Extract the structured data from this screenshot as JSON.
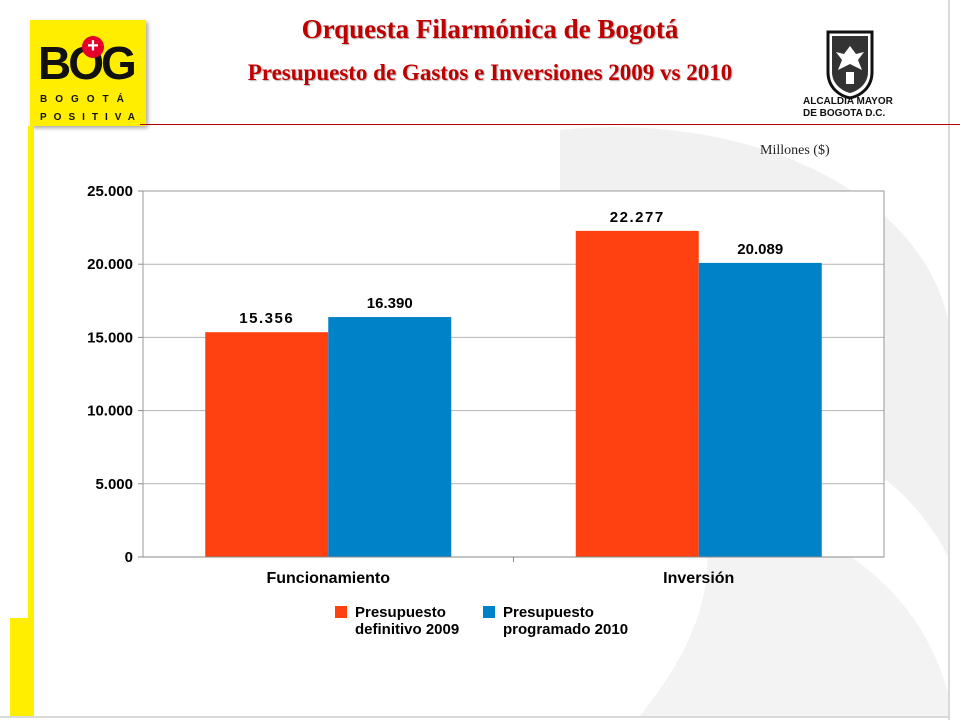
{
  "header": {
    "title": "Orquesta Filarmónica de Bogotá",
    "subtitle": "Presupuesto de Gastos e Inversiones 2009 vs 2010"
  },
  "logos": {
    "bog": {
      "word": "BOG",
      "plus": "+",
      "line1": "BOGOTÁ",
      "line2": "POSITIVA"
    },
    "alcaldia": {
      "line1": "ALCALDIA MAYOR",
      "line2": "DE BOGOTA D.C."
    }
  },
  "units_label": "Millones ($)",
  "colors": {
    "series_2009": "#ff4112",
    "series_2010": "#0082c8",
    "title": "#c00000",
    "accent": "#ffee00"
  },
  "chart_data": {
    "type": "bar",
    "categories": [
      "Funcionamiento",
      "Inversión"
    ],
    "series": [
      {
        "name": "Presupuesto definitivo 2009",
        "values": [
          15356,
          22277
        ],
        "labels": [
          "15.356",
          "22.277"
        ]
      },
      {
        "name": "Presupuesto programado 2010",
        "values": [
          16390,
          20089
        ],
        "labels": [
          "16.390",
          "20.089"
        ]
      }
    ],
    "ylim": [
      0,
      25000
    ],
    "yticks": [
      0,
      5000,
      10000,
      15000,
      20000,
      25000
    ],
    "ytick_labels": [
      "0",
      "5.000",
      "10.000",
      "15.000",
      "20.000",
      "25.000"
    ],
    "grid": true,
    "legend_position": "bottom"
  }
}
